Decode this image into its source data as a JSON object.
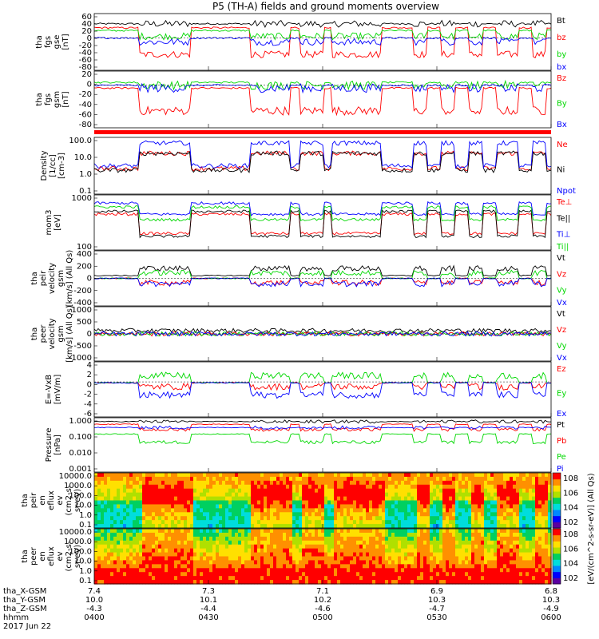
{
  "title": "P5 (TH-A) fields and ground moments overview",
  "x_axis": {
    "ticks": [
      "0400",
      "0430",
      "0500",
      "0530",
      "0600"
    ],
    "rows": [
      {
        "label": "tha_X-GSM",
        "values": [
          "7.4",
          "7.3",
          "7.1",
          "6.9",
          "6.8"
        ]
      },
      {
        "label": "tha_Y-GSM",
        "values": [
          "10.0",
          "10.1",
          "10.2",
          "10.3",
          "10.3"
        ]
      },
      {
        "label": "tha_Z-GSM",
        "values": [
          "-4.3",
          "-4.4",
          "-4.6",
          "-4.7",
          "-4.9"
        ]
      },
      {
        "label": "hhmm",
        "values": [
          "0400",
          "0430",
          "0500",
          "0530",
          "0600"
        ]
      }
    ],
    "date": "2017 Jun 22"
  },
  "colors": {
    "black": "#000000",
    "red": "#ff0000",
    "green": "#00d800",
    "blue": "#0000ff"
  },
  "colorbar_label": "[eV/(cm^2-s-sr-eV)] (All Qs)",
  "chart_data": [
    {
      "type": "line",
      "ylabel": [
        "tha",
        "fgs",
        "gse",
        "[nT]"
      ],
      "ylim": [
        -80,
        60
      ],
      "yticks": [
        "60",
        "40",
        "20",
        "0",
        "-20",
        "-40",
        "-60",
        "-80"
      ],
      "series": [
        {
          "name": "Bt",
          "color": "black"
        },
        {
          "name": "bz",
          "color": "red"
        },
        {
          "name": "by",
          "color": "green"
        },
        {
          "name": "bx",
          "color": "blue"
        }
      ]
    },
    {
      "type": "line",
      "ylabel": [
        "tha",
        "fgs",
        "gsm",
        "[nT]"
      ],
      "ylim": [
        -90,
        30
      ],
      "yticks": [
        "20",
        "0",
        "-20",
        "-40",
        "-60",
        "-80"
      ],
      "series": [
        {
          "name": "Bz",
          "color": "red"
        },
        {
          "name": "By",
          "color": "green"
        },
        {
          "name": "Bx",
          "color": "blue"
        }
      ]
    },
    {
      "type": "line",
      "ylabel": [
        "Density",
        "[1/cc]",
        "[cm-3]"
      ],
      "log": true,
      "ylim": [
        0.1,
        200
      ],
      "yticks": [
        "100.0",
        "10.0",
        "1.0",
        "0.1"
      ],
      "series": [
        {
          "name": "Ne",
          "color": "red"
        },
        {
          "name": "Ni",
          "color": "black"
        },
        {
          "name": "Npot",
          "color": "blue"
        }
      ]
    },
    {
      "type": "line",
      "ylabel": [
        "mom3",
        "[eV]"
      ],
      "log": true,
      "ylim": [
        20,
        5000
      ],
      "yticks": [
        "1000",
        "100"
      ],
      "series": [
        {
          "name": "Te⊥",
          "color": "red"
        },
        {
          "name": "Te||",
          "color": "black"
        },
        {
          "name": "Ti⊥",
          "color": "blue"
        },
        {
          "name": "Ti||",
          "color": "green"
        }
      ]
    },
    {
      "type": "line",
      "ylabel": [
        "tha",
        "peir",
        "velocity",
        "gsm",
        "[km/s] (All Qs)"
      ],
      "ylim": [
        -400,
        400
      ],
      "yticks": [
        "400",
        "200",
        "0",
        "-200",
        "-400"
      ],
      "series": [
        {
          "name": "Vt",
          "color": "black"
        },
        {
          "name": "Vz",
          "color": "red"
        },
        {
          "name": "Vy",
          "color": "green"
        },
        {
          "name": "Vx",
          "color": "blue"
        }
      ]
    },
    {
      "type": "line",
      "ylabel": [
        "tha",
        "peer",
        "velocity",
        "gsm",
        "[km/s] (All Qs)"
      ],
      "ylim": [
        -1000,
        1000
      ],
      "yticks": [
        "1000",
        "500",
        "0",
        "-500",
        "-1000"
      ],
      "series": [
        {
          "name": "Vt",
          "color": "black"
        },
        {
          "name": "Vz",
          "color": "red"
        },
        {
          "name": "Vy",
          "color": "green"
        },
        {
          "name": "Vx",
          "color": "blue"
        }
      ]
    },
    {
      "type": "line",
      "ylabel": [
        "E=-VxB",
        "[mV/m]"
      ],
      "ylim": [
        -7,
        4
      ],
      "yticks": [
        "4",
        "2",
        "0",
        "-2",
        "-4",
        "-6"
      ],
      "series": [
        {
          "name": "Ez",
          "color": "red"
        },
        {
          "name": "Ey",
          "color": "green"
        },
        {
          "name": "Ex",
          "color": "blue"
        }
      ]
    },
    {
      "type": "line",
      "ylabel": [
        "Pressure",
        "[nPa]"
      ],
      "log": true,
      "ylim": [
        0.001,
        2
      ],
      "yticks": [
        "1.000",
        "0.100",
        "0.010",
        "0.001"
      ],
      "series": [
        {
          "name": "Pt",
          "color": "black"
        },
        {
          "name": "Pb",
          "color": "red"
        },
        {
          "name": "Pe",
          "color": "green"
        },
        {
          "name": "Pi",
          "color": "blue"
        }
      ]
    },
    {
      "type": "heatmap",
      "ylabel": [
        "tha",
        "peir",
        "en",
        "eflux",
        "ev",
        "(cm2-s-",
        "sr-eV)"
      ],
      "log": true,
      "ylim": [
        0.05,
        30000
      ],
      "yticks": [
        "10000.0",
        "1000.0",
        "100.0",
        "10.0",
        "1.0",
        "0.1"
      ],
      "colorbar_ticks": [
        "10^8",
        "10^6",
        "10^4",
        "10^2"
      ]
    },
    {
      "type": "heatmap",
      "ylabel": [
        "tha",
        "peer",
        "en",
        "eflux",
        "ev",
        "(cm2-s-",
        "sr-eV)"
      ],
      "log": true,
      "ylim": [
        0.05,
        30000
      ],
      "yticks": [
        "10000.0",
        "1000.0",
        "100.0",
        "10.0",
        "1.0",
        "0.1"
      ],
      "colorbar_ticks": [
        "10^8",
        "10^6",
        "10^4",
        "10^2"
      ]
    }
  ]
}
